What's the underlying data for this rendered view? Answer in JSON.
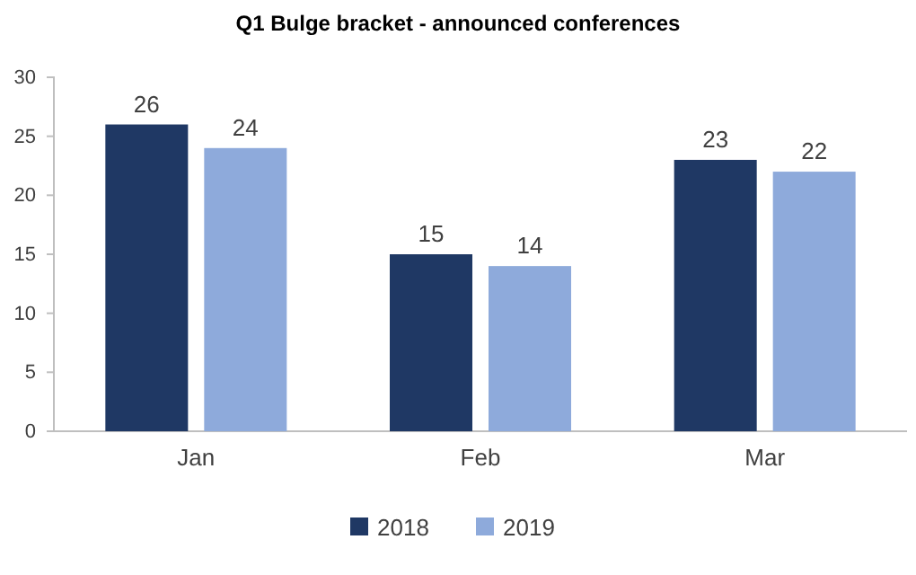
{
  "chart_data": {
    "type": "bar",
    "title": "Q1 Bulge bracket - announced conferences",
    "categories": [
      "Jan",
      "Feb",
      "Mar"
    ],
    "series": [
      {
        "name": "2018",
        "color": "#1f3864",
        "values": [
          26,
          15,
          23
        ]
      },
      {
        "name": "2019",
        "color": "#8eaadb",
        "values": [
          24,
          14,
          22
        ]
      }
    ],
    "ylim": [
      0,
      30
    ],
    "yticks": [
      0,
      5,
      10,
      15,
      20,
      25,
      30
    ],
    "grid": false,
    "legend": "bottom",
    "data_labels": true
  }
}
